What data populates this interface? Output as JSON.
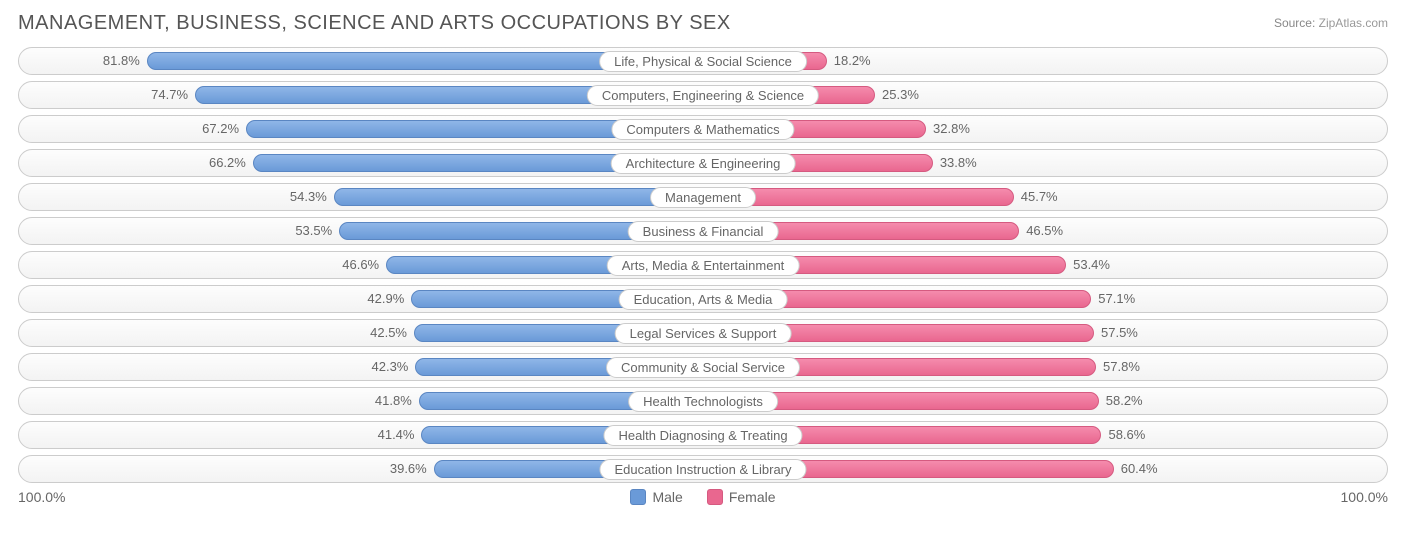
{
  "header": {
    "title": "MANAGEMENT, BUSINESS, SCIENCE AND ARTS OCCUPATIONS BY SEX",
    "source_label": "Source:",
    "source_value": "ZipAtlas.com"
  },
  "chart": {
    "type": "diverging-bar",
    "colors": {
      "male_bar": "#6a9ad8",
      "male_border": "#5a86c2",
      "female_bar": "#e9678f",
      "female_border": "#d55a80",
      "row_border": "#cccccc",
      "text": "#666666",
      "title_text": "#555555",
      "background": "#ffffff"
    },
    "axis": {
      "left_label": "100.0%",
      "right_label": "100.0%",
      "max_pct": 100.0
    },
    "legend": {
      "male_label": "Male",
      "female_label": "Female"
    },
    "rows": [
      {
        "label": "Life, Physical & Social Science",
        "male": 81.8,
        "female": 18.2,
        "male_text": "81.8%",
        "female_text": "18.2%"
      },
      {
        "label": "Computers, Engineering & Science",
        "male": 74.7,
        "female": 25.3,
        "male_text": "74.7%",
        "female_text": "25.3%"
      },
      {
        "label": "Computers & Mathematics",
        "male": 67.2,
        "female": 32.8,
        "male_text": "67.2%",
        "female_text": "32.8%"
      },
      {
        "label": "Architecture & Engineering",
        "male": 66.2,
        "female": 33.8,
        "male_text": "66.2%",
        "female_text": "33.8%"
      },
      {
        "label": "Management",
        "male": 54.3,
        "female": 45.7,
        "male_text": "54.3%",
        "female_text": "45.7%"
      },
      {
        "label": "Business & Financial",
        "male": 53.5,
        "female": 46.5,
        "male_text": "53.5%",
        "female_text": "46.5%"
      },
      {
        "label": "Arts, Media & Entertainment",
        "male": 46.6,
        "female": 53.4,
        "male_text": "46.6%",
        "female_text": "53.4%"
      },
      {
        "label": "Education, Arts & Media",
        "male": 42.9,
        "female": 57.1,
        "male_text": "42.9%",
        "female_text": "57.1%"
      },
      {
        "label": "Legal Services & Support",
        "male": 42.5,
        "female": 57.5,
        "male_text": "42.5%",
        "female_text": "57.5%"
      },
      {
        "label": "Community & Social Service",
        "male": 42.3,
        "female": 57.8,
        "male_text": "42.3%",
        "female_text": "57.8%"
      },
      {
        "label": "Health Technologists",
        "male": 41.8,
        "female": 58.2,
        "male_text": "41.8%",
        "female_text": "58.2%"
      },
      {
        "label": "Health Diagnosing & Treating",
        "male": 41.4,
        "female": 58.6,
        "male_text": "41.4%",
        "female_text": "58.6%"
      },
      {
        "label": "Education Instruction & Library",
        "male": 39.6,
        "female": 60.4,
        "male_text": "39.6%",
        "female_text": "60.4%"
      }
    ]
  }
}
